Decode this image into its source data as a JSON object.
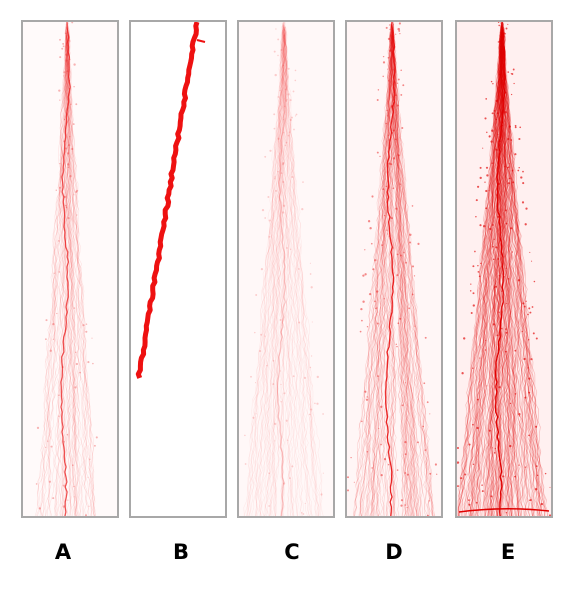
{
  "panels": [
    {
      "label": "A",
      "background": "#fffafa",
      "trace_color": "#e81010",
      "density": "sparse"
    },
    {
      "label": "B",
      "background": "#ffffff",
      "trace_color": "#ee1111",
      "density": "single-path"
    },
    {
      "label": "C",
      "background": "#fff8f8",
      "trace_color": "#ec3030",
      "density": "faint"
    },
    {
      "label": "D",
      "background": "#fff6f6",
      "trace_color": "#e81010",
      "density": "medium"
    },
    {
      "label": "E",
      "background": "#fff0f0",
      "trace_color": "#e00000",
      "density": "dense"
    }
  ]
}
